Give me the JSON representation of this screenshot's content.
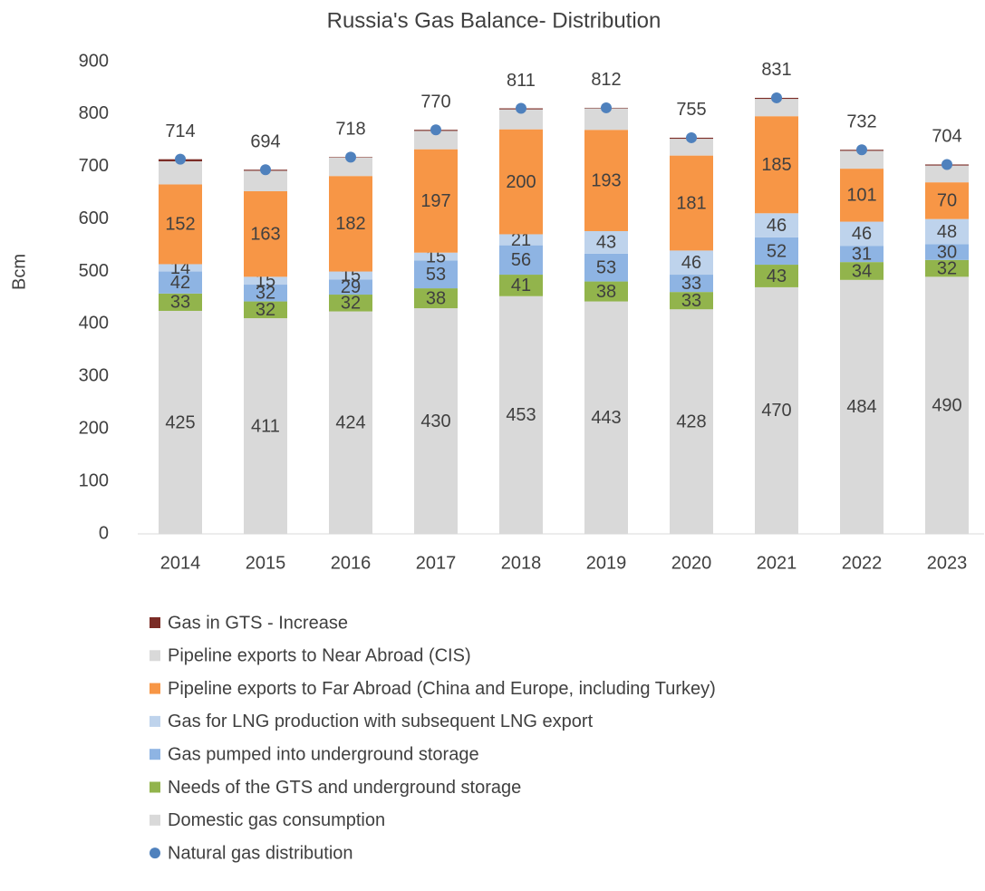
{
  "chart_data": {
    "type": "bar",
    "stacked": true,
    "title": "Russia's Gas Balance- Distribution",
    "y_label": "Bcm",
    "categories": [
      "2014",
      "2015",
      "2016",
      "2017",
      "2018",
      "2019",
      "2020",
      "2021",
      "2022",
      "2023"
    ],
    "ylim": [
      0,
      900
    ],
    "yticks": [
      0,
      100,
      200,
      300,
      400,
      500,
      600,
      700,
      800,
      900
    ],
    "grid": false,
    "series": [
      {
        "name": "Domestic gas consumption",
        "color": "#d9d9d9",
        "data_labels": true,
        "values": [
          425,
          411,
          424,
          430,
          453,
          443,
          428,
          470,
          484,
          490
        ]
      },
      {
        "name": "Needs of the GTS and underground storage",
        "color": "#92b44c",
        "data_labels": true,
        "values": [
          33,
          32,
          32,
          38,
          41,
          38,
          33,
          43,
          34,
          32
        ]
      },
      {
        "name": "Gas pumped into underground storage",
        "color": "#8eb4e3",
        "data_labels": true,
        "values": [
          42,
          32,
          29,
          53,
          56,
          53,
          33,
          52,
          31,
          30
        ]
      },
      {
        "name": "Gas for LNG production with subsequent LNG export",
        "color": "#bed3ec",
        "data_labels": true,
        "values": [
          14,
          15,
          15,
          15,
          21,
          43,
          46,
          46,
          46,
          48
        ]
      },
      {
        "name": "Pipeline exports to Far Abroad (China and Europe, including Turkey)",
        "color": "#f79646",
        "data_labels": true,
        "values": [
          152,
          163,
          182,
          197,
          200,
          193,
          181,
          185,
          101,
          70
        ]
      },
      {
        "name": "Pipeline exports to Near Abroad (CIS)",
        "color": "#d9d9d9",
        "data_labels": false,
        "values": [
          44,
          39,
          35,
          35,
          38,
          41,
          32,
          33,
          34,
          32
        ]
      },
      {
        "name": "Gas in GTS - Increase",
        "color": "#7b2c26",
        "data_labels": false,
        "values": [
          4,
          2,
          1,
          2,
          2,
          1,
          2,
          2,
          2,
          2
        ]
      },
      {
        "name": "Natural gas distribution",
        "color": "#4f81bd",
        "type": "scatter",
        "data_labels": true,
        "values": [
          714,
          694,
          718,
          770,
          811,
          812,
          755,
          831,
          732,
          704
        ]
      }
    ]
  }
}
